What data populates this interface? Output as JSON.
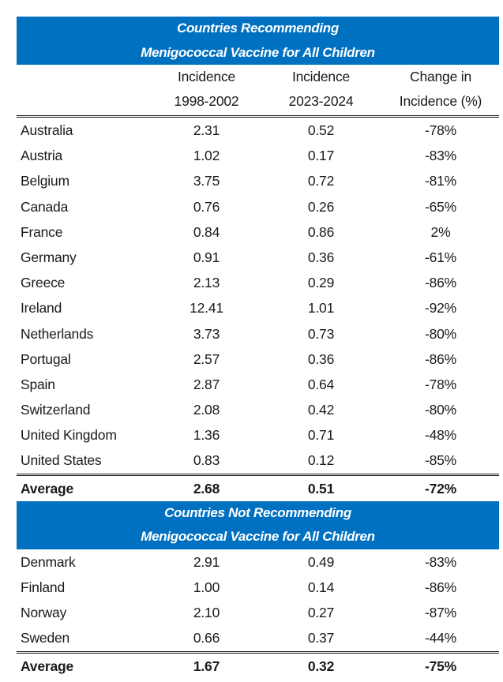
{
  "section_recommending": {
    "title_line1": "Countries Recommending",
    "title_line2": "Menigococcal Vaccine for All Children",
    "columns": [
      {
        "line1": "",
        "line2": ""
      },
      {
        "line1": "Incidence",
        "line2": "1998-2002"
      },
      {
        "line1": "Incidence",
        "line2": "2023-2024"
      },
      {
        "line1": "Change in",
        "line2": "Incidence (%)"
      }
    ],
    "rows": [
      {
        "country": "Australia",
        "inc_1998_2002": "2.31",
        "inc_2023_2024": "0.52",
        "change": "-78%"
      },
      {
        "country": "Austria",
        "inc_1998_2002": "1.02",
        "inc_2023_2024": "0.17",
        "change": "-83%"
      },
      {
        "country": "Belgium",
        "inc_1998_2002": "3.75",
        "inc_2023_2024": "0.72",
        "change": "-81%"
      },
      {
        "country": "Canada",
        "inc_1998_2002": "0.76",
        "inc_2023_2024": "0.26",
        "change": "-65%"
      },
      {
        "country": "France",
        "inc_1998_2002": "0.84",
        "inc_2023_2024": "0.86",
        "change": "2%"
      },
      {
        "country": "Germany",
        "inc_1998_2002": "0.91",
        "inc_2023_2024": "0.36",
        "change": "-61%"
      },
      {
        "country": "Greece",
        "inc_1998_2002": "2.13",
        "inc_2023_2024": "0.29",
        "change": "-86%"
      },
      {
        "country": "Ireland",
        "inc_1998_2002": "12.41",
        "inc_2023_2024": "1.01",
        "change": "-92%"
      },
      {
        "country": "Netherlands",
        "inc_1998_2002": "3.73",
        "inc_2023_2024": "0.73",
        "change": "-80%"
      },
      {
        "country": "Portugal",
        "inc_1998_2002": "2.57",
        "inc_2023_2024": "0.36",
        "change": "-86%"
      },
      {
        "country": "Spain",
        "inc_1998_2002": "2.87",
        "inc_2023_2024": "0.64",
        "change": "-78%"
      },
      {
        "country": "Switzerland",
        "inc_1998_2002": "2.08",
        "inc_2023_2024": "0.42",
        "change": "-80%"
      },
      {
        "country": "United Kingdom",
        "inc_1998_2002": "1.36",
        "inc_2023_2024": "0.71",
        "change": "-48%"
      },
      {
        "country": "United States",
        "inc_1998_2002": "0.83",
        "inc_2023_2024": "0.12",
        "change": "-85%"
      }
    ],
    "average": {
      "label": "Average",
      "inc_1998_2002": "2.68",
      "inc_2023_2024": "0.51",
      "change": "-72%"
    }
  },
  "section_not_recommending": {
    "title_line1": "Countries Not Recommending",
    "title_line2": "Menigococcal Vaccine for All Children",
    "rows": [
      {
        "country": "Denmark",
        "inc_1998_2002": "2.91",
        "inc_2023_2024": "0.49",
        "change": "-83%"
      },
      {
        "country": "Finland",
        "inc_1998_2002": "1.00",
        "inc_2023_2024": "0.14",
        "change": "-86%"
      },
      {
        "country": "Norway",
        "inc_1998_2002": "2.10",
        "inc_2023_2024": "0.27",
        "change": "-87%"
      },
      {
        "country": "Sweden",
        "inc_1998_2002": "0.66",
        "inc_2023_2024": "0.37",
        "change": "-44%"
      }
    ],
    "average": {
      "label": "Average",
      "inc_1998_2002": "1.67",
      "inc_2023_2024": "0.32",
      "change": "-75%"
    }
  },
  "colors": {
    "band_blue": "#0070C0",
    "band_text": "#FFFFFF",
    "text": "#1A1A1A"
  }
}
